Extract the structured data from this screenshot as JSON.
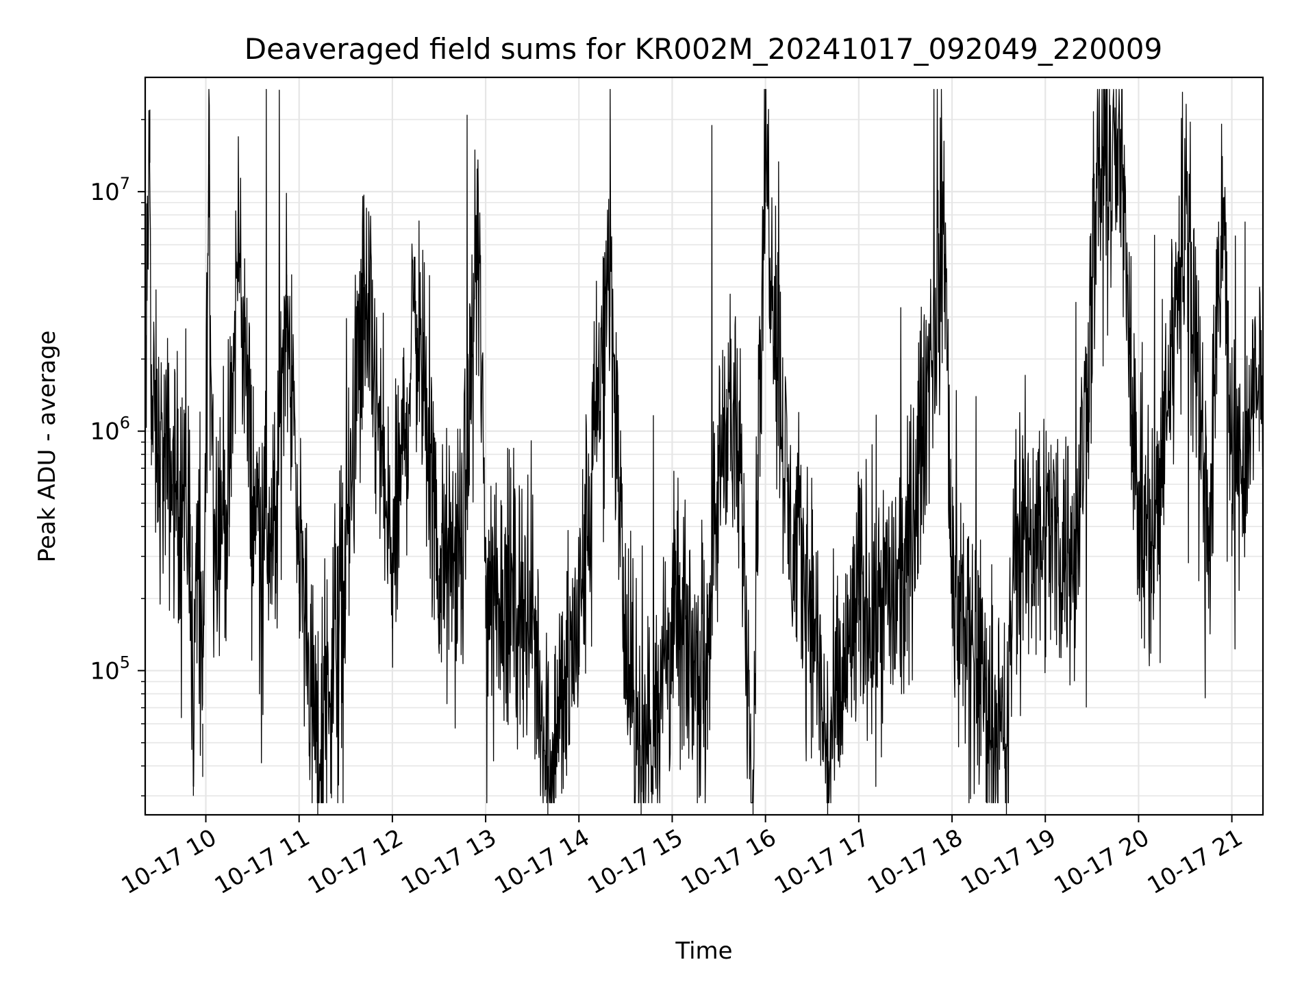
{
  "chart_data": {
    "type": "line",
    "title": "Deaveraged field sums for KR002M_20241017_092049_220009",
    "xlabel": "Time",
    "ylabel": "Peak ADU - average",
    "yscale": "log",
    "ylim": [
      25000,
      30000000
    ],
    "xlim": [
      "2024-10-17T09:21:00",
      "2024-10-17T21:20:00"
    ],
    "grid": true,
    "line_color": "#000000",
    "grid_color": "#e6e6e6",
    "x_ticks": [
      "2024-10-17T10:00:00",
      "2024-10-17T11:00:00",
      "2024-10-17T12:00:00",
      "2024-10-17T13:00:00",
      "2024-10-17T14:00:00",
      "2024-10-17T15:00:00",
      "2024-10-17T16:00:00",
      "2024-10-17T17:00:00",
      "2024-10-17T18:00:00",
      "2024-10-17T19:00:00",
      "2024-10-17T20:00:00",
      "2024-10-17T21:00:00"
    ],
    "x_tick_labels": [
      "10-17 10",
      "10-17 11",
      "10-17 12",
      "10-17 13",
      "10-17 14",
      "10-17 15",
      "10-17 16",
      "10-17 17",
      "10-17 18",
      "10-17 19",
      "10-17 20",
      "10-17 21"
    ],
    "y_ticks": [
      100000,
      1000000,
      10000000
    ],
    "y_tick_labels": [
      {
        "base": "10",
        "exp": "5"
      },
      {
        "base": "10",
        "exp": "6"
      },
      {
        "base": "10",
        "exp": "7"
      }
    ],
    "series": [
      {
        "x": [
          "2024-10-17T09:21:00",
          "2024-10-17T09:24:00",
          "2024-10-17T09:25:00",
          "2024-10-17T09:30:00",
          "2024-10-17T09:40:00",
          "2024-10-17T09:50:00",
          "2024-10-17T09:52:00",
          "2024-10-17T09:55:00",
          "2024-10-17T09:58:00",
          "2024-10-17T10:02:00",
          "2024-10-17T10:05:00",
          "2024-10-17T10:15:00",
          "2024-10-17T10:21:00",
          "2024-10-17T10:30:00",
          "2024-10-17T10:45:00",
          "2024-10-17T10:52:00",
          "2024-10-17T11:00:00",
          "2024-10-17T11:12:00",
          "2024-10-17T11:30:00",
          "2024-10-17T11:42:00",
          "2024-10-17T12:00:00",
          "2024-10-17T12:15:00",
          "2024-10-17T12:30:00",
          "2024-10-17T12:45:00",
          "2024-10-17T12:55:00",
          "2024-10-17T13:00:00",
          "2024-10-17T13:30:00",
          "2024-10-17T13:40:00",
          "2024-10-17T14:00:00",
          "2024-10-17T14:20:00",
          "2024-10-17T14:30:00",
          "2024-10-17T14:40:00",
          "2024-10-17T15:00:00",
          "2024-10-17T15:20:00",
          "2024-10-17T15:35:00",
          "2024-10-17T15:45:00",
          "2024-10-17T15:52:00",
          "2024-10-17T15:55:00",
          "2024-10-17T16:00:00",
          "2024-10-17T16:15:00",
          "2024-10-17T16:30:00",
          "2024-10-17T16:40:00",
          "2024-10-17T17:00:00",
          "2024-10-17T17:30:00",
          "2024-10-17T17:55:00",
          "2024-10-17T18:00:00",
          "2024-10-17T18:35:00",
          "2024-10-17T18:40:00",
          "2024-10-17T19:00:00",
          "2024-10-17T19:20:00",
          "2024-10-17T19:35:00",
          "2024-10-17T19:50:00",
          "2024-10-17T20:00:00",
          "2024-10-17T20:10:00",
          "2024-10-17T20:30:00",
          "2024-10-17T20:45:00",
          "2024-10-17T20:55:00",
          "2024-10-17T21:00:00",
          "2024-10-17T21:10:00",
          "2024-10-17T21:20:00"
        ],
        "values": [
          900000,
          22000000,
          1200000,
          800000,
          600000,
          450000,
          50000,
          500000,
          60000,
          13000000,
          450000,
          500000,
          7000000,
          500000,
          350000,
          4500000,
          350000,
          40000,
          300000,
          4000000,
          250000,
          3500000,
          250000,
          300000,
          7500000,
          250000,
          170000,
          40000,
          160000,
          5000000,
          120000,
          40000,
          150000,
          100000,
          1500000,
          500000,
          30000,
          800000,
          15000000,
          400000,
          200000,
          40000,
          200000,
          220000,
          7500000,
          250000,
          40000,
          350000,
          400000,
          300000,
          13000000,
          13000000,
          400000,
          350000,
          9500000,
          400000,
          9500000,
          500000,
          1000000,
          1500000
        ]
      }
    ]
  }
}
